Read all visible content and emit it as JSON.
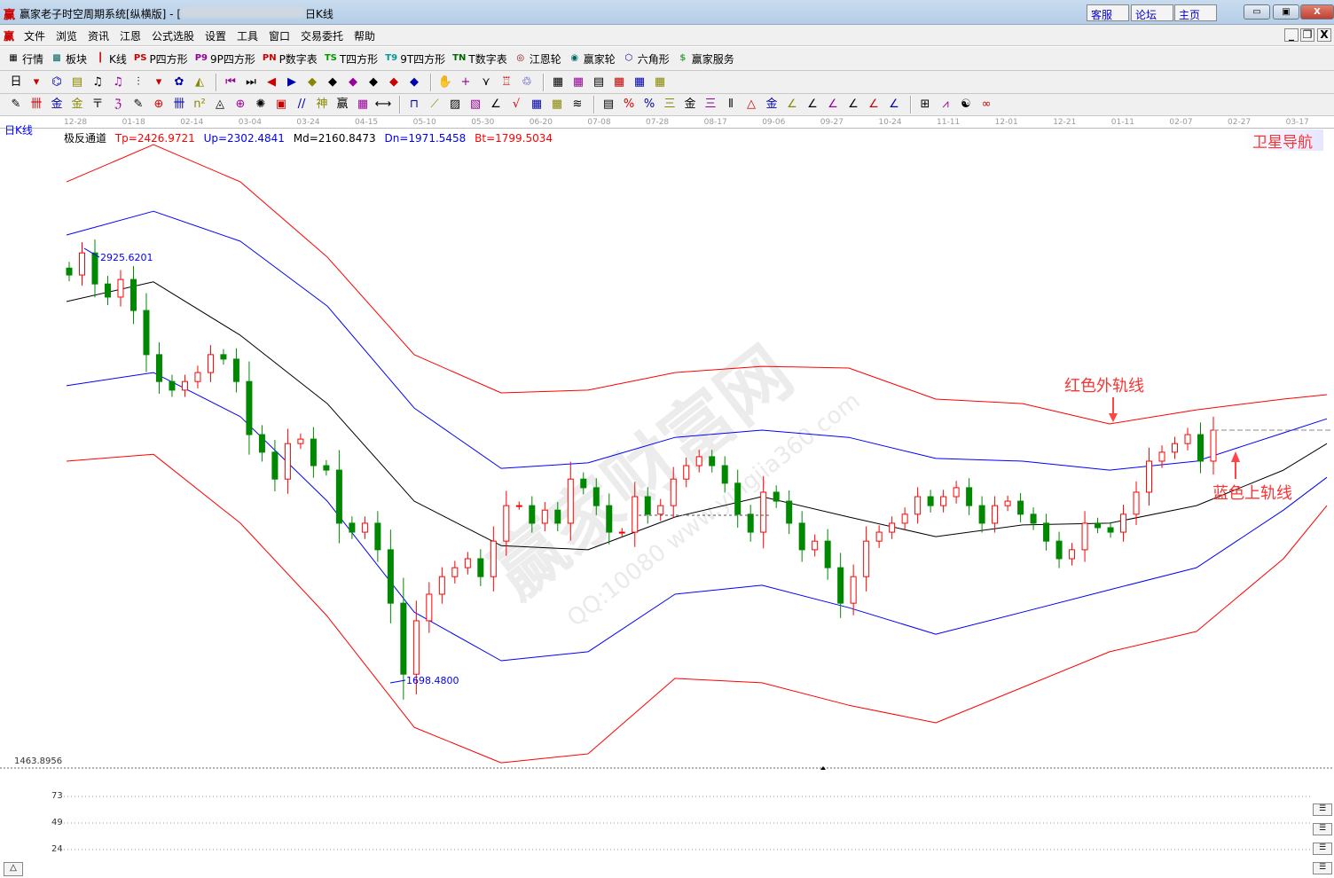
{
  "window": {
    "logo": "赢",
    "title": "赢家老子时空周期系统[纵横版] - [",
    "title_suffix": "日K线",
    "links": [
      "客服",
      "论坛",
      "主页"
    ],
    "controls": [
      "▭",
      "▣",
      "X"
    ]
  },
  "menu": {
    "logo": "赢",
    "items": [
      "文件",
      "浏览",
      "资讯",
      "江恩",
      "公式选股",
      "设置",
      "工具",
      "窗口",
      "交易委托",
      "帮助"
    ],
    "mdi_controls": [
      "_",
      "❐",
      "X"
    ]
  },
  "toolbar1": [
    {
      "icon": "▦",
      "label": "行情",
      "name": "quotes"
    },
    {
      "icon": "▩",
      "label": "板块",
      "name": "sectors"
    },
    {
      "icon": "┃",
      "label": "K线",
      "name": "kline"
    },
    {
      "icon": "PS",
      "label": "P四方形",
      "name": "p-square"
    },
    {
      "icon": "P9",
      "label": "9P四方形",
      "name": "9p-square"
    },
    {
      "icon": "PN",
      "label": "P数字表",
      "name": "p-number-table"
    },
    {
      "icon": "TS",
      "label": "T四方形",
      "name": "t-square"
    },
    {
      "icon": "T9",
      "label": "9T四方形",
      "name": "9t-square"
    },
    {
      "icon": "TN",
      "label": "T数字表",
      "name": "t-number-table"
    },
    {
      "icon": "◎",
      "label": "江恩轮",
      "name": "gann-wheel"
    },
    {
      "icon": "◉",
      "label": "赢家轮",
      "name": "winner-wheel"
    },
    {
      "icon": "⬡",
      "label": "六角形",
      "name": "hexagon"
    },
    {
      "icon": "$",
      "label": "赢家服务",
      "name": "winner-service"
    }
  ],
  "toolbar2_icons": [
    "日",
    "▾",
    "⌬",
    "▤",
    "♫",
    "♫",
    "⫶",
    "▾",
    "✿",
    "◭",
    "|",
    "⏮",
    "⏭",
    "◀",
    "▶",
    "◆",
    "◆",
    "◆",
    "◆",
    "◆",
    "◆",
    "|",
    "✋",
    "+",
    "⋎",
    "♖",
    "♲",
    "|",
    "▦",
    "▦",
    "▤",
    "▦",
    "▦",
    "▦"
  ],
  "toolbar3_icons": [
    "✎",
    "卌",
    "金",
    "金",
    "〒",
    "ℨ",
    "✎",
    "⊕",
    "卌",
    "n²",
    "◬",
    "⊕",
    "✺",
    "▣",
    "//",
    "神",
    "赢",
    "▦",
    "⟷",
    "|",
    "⊓",
    "⟋",
    "▨",
    "▧",
    "∠",
    "√",
    "▦",
    "▦",
    "≋",
    "|",
    "▤",
    "%",
    "%",
    "三",
    "金",
    "三",
    "⫴",
    "△",
    "金",
    "∠",
    "∠",
    "∠",
    "∠",
    "∠",
    "∠",
    "|",
    "⊞",
    "⩘",
    "☯",
    "∞"
  ],
  "date_axis": [
    "12-28",
    "01-18",
    "02-14",
    "03-04",
    "03-24",
    "04-15",
    "05-10",
    "05-30",
    "06-20",
    "07-08",
    "07-28",
    "08-17",
    "09-06",
    "09-27",
    "10-24",
    "11-11",
    "12-01",
    "12-21",
    "01-11",
    "02-07",
    "02-27",
    "03-17"
  ],
  "chart_label": "日K线",
  "indicator": {
    "name": "极反通道",
    "tp": "Tp=2426.9721",
    "up": "Up=2302.4841",
    "md": "Md=2160.8473",
    "dn": "Dn=1971.5458",
    "bt": "Bt=1799.5034"
  },
  "nav_button": "卫星导航",
  "annotations": {
    "red_outer": "红色外轨线",
    "blue_upper": "蓝色上轨线",
    "high": "2925.6201",
    "low": "1698.4800",
    "axis_min": "1463.8956"
  },
  "watermark": "赢家财富网",
  "watermark2": "QQ:10080 www.yingjia360.com",
  "lower_panel": {
    "labels": [
      "73",
      "49",
      "24"
    ]
  },
  "colors": {
    "red": "#ff0000",
    "blue": "#0000ff",
    "mid": "#000000",
    "up_candle": "#ff0000",
    "down_candle": "#008000"
  },
  "chart_data": {
    "type": "candlestick-with-channel",
    "x_unit": "trading-day index",
    "y_unit": "price",
    "ylim": [
      1463.8956,
      3300
    ],
    "channel_x": [
      0,
      20,
      40,
      60,
      80,
      100,
      120,
      140,
      160,
      180,
      200,
      220,
      240,
      260,
      280,
      290
    ],
    "series": [
      {
        "key": "tp",
        "color": "#ff0000",
        "values": [
          3144,
          3252,
          3144,
          2926,
          2643,
          2532,
          2540,
          2591,
          2609,
          2604,
          2514,
          2501,
          2442,
          2483,
          2514,
          2527
        ]
      },
      {
        "key": "up",
        "color": "#0000ff",
        "values": [
          2990,
          3059,
          2972,
          2784,
          2488,
          2313,
          2329,
          2403,
          2424,
          2403,
          2342,
          2334,
          2308,
          2334,
          2416,
          2457
        ]
      },
      {
        "key": "md",
        "color": "#000000",
        "values": [
          2797,
          2854,
          2699,
          2501,
          2218,
          2089,
          2077,
          2172,
          2231,
          2172,
          2115,
          2149,
          2154,
          2205,
          2308,
          2385
        ]
      },
      {
        "key": "dn",
        "color": "#0000ff",
        "values": [
          2553,
          2591,
          2463,
          2218,
          1896,
          1755,
          1781,
          1948,
          1974,
          1909,
          1832,
          1896,
          1961,
          2025,
          2192,
          2287
        ]
      },
      {
        "key": "bt",
        "color": "#ff0000",
        "values": [
          2334,
          2354,
          2154,
          1884,
          1562,
          1459,
          1485,
          1704,
          1691,
          1626,
          1575,
          1678,
          1781,
          1840,
          2051,
          2205
        ]
      }
    ],
    "closes": [
      2874,
      2938,
      2848,
      2810,
      2861,
      2771,
      2643,
      2565,
      2540,
      2565,
      2591,
      2643,
      2630,
      2565,
      2411,
      2360,
      2282,
      2385,
      2398,
      2321,
      2308,
      2154,
      2128,
      2154,
      2077,
      1922,
      1716,
      1871,
      1948,
      1999,
      2025,
      2051,
      1999,
      2102,
      2205,
      2205,
      2154,
      2192,
      2154,
      2282,
      2257,
      2205,
      2128,
      2128,
      2231,
      2180,
      2205,
      2282,
      2321,
      2347,
      2321,
      2270,
      2180,
      2128,
      2244,
      2218,
      2154,
      2077,
      2102,
      2025,
      1922,
      1999,
      2102,
      2128,
      2154,
      2180,
      2231,
      2205,
      2231,
      2257,
      2205,
      2154,
      2205,
      2218,
      2180,
      2154,
      2102,
      2051,
      2077,
      2154,
      2141,
      2128,
      2180,
      2244,
      2334,
      2360,
      2385,
      2411,
      2334,
      2424
    ],
    "high_mark": 2925.6201,
    "low_mark": 1698.48,
    "ref_line": 2424
  }
}
